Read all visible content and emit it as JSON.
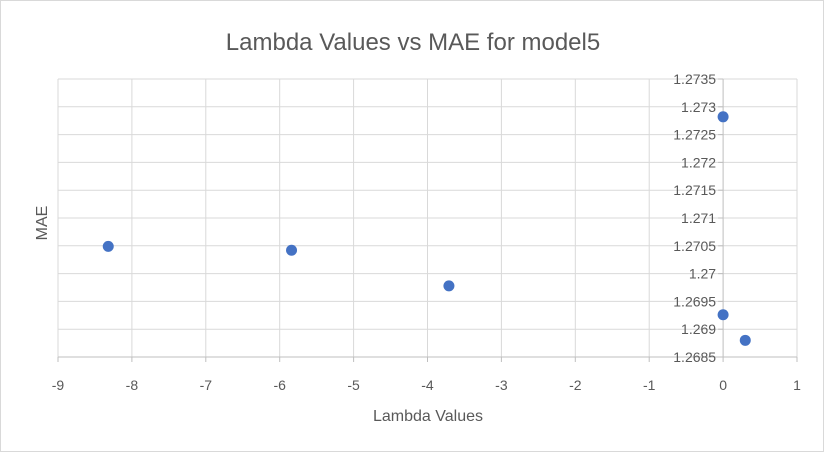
{
  "chart_data": {
    "type": "scatter",
    "title": "Lambda Values vs MAE for model5",
    "xlabel": "Lambda Values",
    "ylabel": "MAE",
    "xlim": [
      -9,
      1
    ],
    "ylim": [
      1.2685,
      1.2735
    ],
    "x_ticks": [
      "-9",
      "-8",
      "-7",
      "-6",
      "-5",
      "-4",
      "-3",
      "-2",
      "-1",
      "0",
      "1"
    ],
    "y_ticks": [
      "1.2685",
      "1.269",
      "1.2695",
      "1.27",
      "1.2705",
      "1.271",
      "1.2715",
      "1.272",
      "1.2725",
      "1.273",
      "1.2735"
    ],
    "grid": true,
    "legend": "none",
    "series": [
      {
        "color": "#4472c4",
        "points": [
          {
            "x": -8.32,
            "y": 1.27049
          },
          {
            "x": -5.84,
            "y": 1.27042
          },
          {
            "x": -3.71,
            "y": 1.26978
          },
          {
            "x": 0.0,
            "y": 1.27282
          },
          {
            "x": 0.0,
            "y": 1.26926
          },
          {
            "x": 0.3,
            "y": 1.2688
          }
        ]
      }
    ],
    "colors": {
      "grid": "#d9d9d9",
      "axis": "#bfbfbf",
      "text": "#595959"
    }
  }
}
